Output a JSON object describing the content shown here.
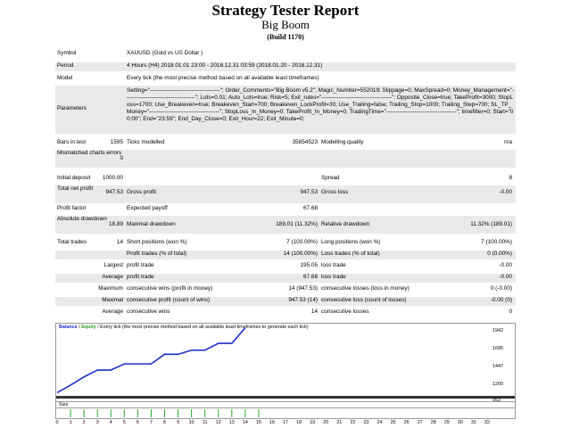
{
  "header": {
    "title": "Strategy Tester Report",
    "subtitle": "Big Boom",
    "build": "(Build 1170)"
  },
  "info": {
    "symbol_label": "Symbol",
    "symbol_value": "XAUUSD (Gold vs US Dollar )",
    "period_label": "Period",
    "period_value": "4 Hours (H4) 2018.01.01 23:00 - 2018.12.31 03:59 (2018.01.20 - 2018.12.31)",
    "model_label": "Model",
    "model_value": "Every tick (the most precise method based on all available least timeframes)",
    "parameters_label": "Parameters",
    "parameters_value": "Setting=\"-------------------------------------\"; Order_Comments=\"Big Boom v5.2\"; Magic_Number=552019; Slippage=0; MaxSpread=0; Money_Management=\"-------------------------------------\"; Lots=0.01; Auto_Lots=true; Risk=5; Exit_rules=\"-------------------------------------\"; Opposite_Close=true; TakeProfit=3000; StopLoss=1700; Use_Breakeven=true; Breakeven_Start=700; Breakeven_LockProfit=30; Use_Trailing=false; Trailing_Stop=1000; Trailing_Step=700; SL_TP_Money=\"-------------------------------------\"; StopLoss_In_Money=0; TakeProfit_In_Money=0; TradingTime=\"-------------------------------------\"; timefilter=0; Start=\"00:00\"; End=\"23:59\"; End_Day_Close=0; Exit_Hour=22; Exit_Minute=0;"
  },
  "stats": {
    "bars_label": "Bars in test",
    "bars_value": "1595",
    "ticks_label": "Ticks modelled",
    "ticks_value": "35854523",
    "quality_label": "Modelling quality",
    "quality_value": "n/a",
    "mismatch_label": "Mismatched charts errors",
    "mismatch_value": "0",
    "deposit_label": "Initial deposit",
    "deposit_value": "1000.00",
    "spread_label": "Spread",
    "spread_value": "8",
    "netprofit_label": "Total net profit",
    "netprofit_value": "947.53",
    "grossprofit_label": "Gross profit",
    "grossprofit_value": "947.53",
    "grossloss_label": "Gross loss",
    "grossloss_value": "-0.00",
    "pf_label": "Profit factor",
    "pf_value": "",
    "payoff_label": "Expected payoff",
    "payoff_value": "67.68",
    "absdd_label": "Absolute drawdown",
    "absdd_value": "18.89",
    "maxdd_label": "Maximal drawdown",
    "maxdd_value": "189.01 (11.32%)",
    "reldd_label": "Relative drawdown",
    "reldd_value": "11.32% (189.01)",
    "trades_label": "Total trades",
    "trades_value": "14",
    "short_label": "Short positions (won %)",
    "short_value": "7 (100.00%)",
    "long_label": "Long positions (won %)",
    "long_value": "7 (100.00%)",
    "profit_trades_label": "Profit trades (% of total)",
    "profit_trades_value": "14 (100.00%)",
    "loss_trades_label": "Loss trades (% of total)",
    "loss_trades_value": "0 (0.00%)",
    "largest_label": "Largest",
    "largest_profit_label": "profit trade",
    "largest_profit_value": "195.05",
    "largest_loss_label": "loss trade",
    "largest_loss_value": "-0.00",
    "average_label": "Average",
    "average_profit_label": "profit trade",
    "average_profit_value": "67.68",
    "average_loss_label": "loss trade",
    "average_loss_value": "-0.00",
    "maximum_label": "Maximum",
    "max_cwins_label": "consecutive wins (profit in money)",
    "max_cwins_value": "14 (947.53)",
    "max_closses_label": "consecutive losses (loss in money)",
    "max_closses_value": "0 (-0.00)",
    "maximal_label": "Maximal",
    "maximal_cprofit_label": "consecutive profit (count of wins)",
    "maximal_cprofit_value": "947.53 (14)",
    "maximal_closs_label": "consecutive loss (count of losses)",
    "maximal_closs_value": "-0.00 (0)",
    "avg2_label": "Average",
    "avg_cwins_label": "consecutive wins",
    "avg_cwins_value": "14",
    "avg_closses_label": "consecutive losses",
    "avg_closses_value": "0"
  },
  "chart_data": {
    "type": "line",
    "legend_balance": "Balance",
    "legend_sep": " / ",
    "legend_equity": "Equity",
    "legend_rest": " / Every tick (the most precise method based on all available least timeframes to generate each tick)",
    "size_label": "Size",
    "colors": {
      "balance": "#1a2ec8",
      "equity": "#2a9a2a",
      "volume": "#22aa22"
    },
    "yticks": [
      "1942",
      "1695",
      "1447",
      "1200",
      "953"
    ],
    "ylim": [
      953,
      1942
    ],
    "xlim": [
      0,
      32
    ],
    "xticks": [
      "0",
      "1",
      "2",
      "3",
      "4",
      "5",
      "6",
      "7",
      "8",
      "9",
      "10",
      "11",
      "12",
      "13",
      "14",
      "15",
      "16",
      "17",
      "18",
      "19",
      "20",
      "21",
      "22",
      "23",
      "24",
      "25",
      "26",
      "27",
      "28",
      "29",
      "30",
      "31",
      "32"
    ],
    "series": [
      {
        "name": "Balance",
        "x": [
          0,
          1,
          2,
          3,
          4,
          5,
          6,
          7,
          8,
          9,
          10,
          11,
          12,
          13,
          14
        ],
        "y": [
          1000,
          1110,
          1230,
          1330,
          1330,
          1420,
          1420,
          1420,
          1560,
          1560,
          1620,
          1620,
          1720,
          1720,
          1947
        ]
      }
    ],
    "volume": [
      1,
      1,
      1,
      1,
      1,
      1,
      1,
      1,
      1,
      1,
      1,
      1,
      1,
      1,
      1
    ]
  }
}
